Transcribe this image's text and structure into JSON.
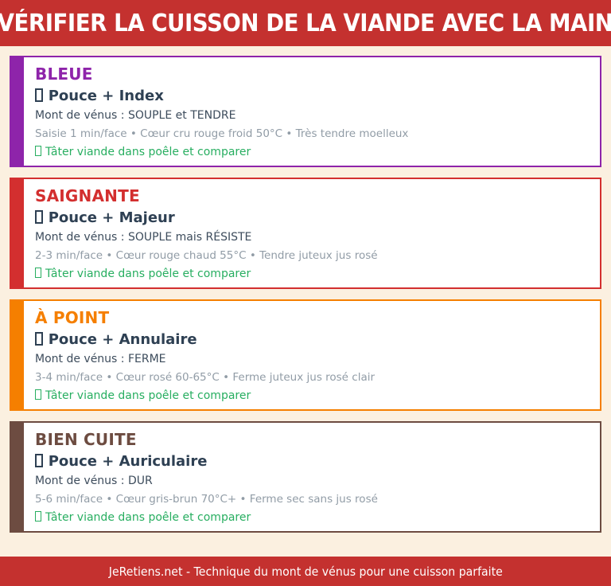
{
  "header": {
    "title": "VÉRIFIER LA CUISSON DE LA VIANDE AVEC LA MAIN"
  },
  "cards": [
    {
      "title": "BLEUE",
      "fingers": "Pouce + Index",
      "mont": "Mont de vénus : SOUPLE et TENDRE",
      "details": "Saisie 1 min/face • Cœur cru rouge froid 50°C • Très tendre moelleux",
      "action": "Tâter viande dans poêle et comparer",
      "color": "#8e24aa"
    },
    {
      "title": "SAIGNANTE",
      "fingers": "Pouce + Majeur",
      "mont": "Mont de vénus : SOUPLE mais RÉSISTE",
      "details": "2-3 min/face • Cœur rouge chaud 55°C • Tendre juteux jus rosé",
      "action": "Tâter viande dans poêle et comparer",
      "color": "#d32f2f"
    },
    {
      "title": "À POINT",
      "fingers": "Pouce + Annulaire",
      "mont": "Mont de vénus : FERME",
      "details": "3-4 min/face • Cœur rosé 60-65°C • Ferme juteux jus rosé clair",
      "action": "Tâter viande dans poêle et comparer",
      "color": "#f57f00"
    },
    {
      "title": "BIEN CUITE",
      "fingers": "Pouce + Auriculaire",
      "mont": "Mont de vénus : DUR",
      "details": "5-6 min/face • Cœur gris-brun 70°C+ • Ferme sec sans jus rosé",
      "action": "Tâter viande dans poêle et comparer",
      "color": "#6d4c41"
    }
  ],
  "footer": {
    "text": "JeRetiens.net - Technique du mont de vénus pour une cuisson parfaite"
  },
  "icons": {
    "finger_icon": "missing-glyph-box",
    "action_icon": "missing-glyph-box"
  },
  "colors": {
    "banner_background": "#c4312f",
    "page_background": "#fbf0e0",
    "card_background": "#ffffff",
    "accent_bleue": "#8e24aa",
    "accent_saignante": "#d32f2f",
    "accent_a_point": "#f57f00",
    "accent_bien_cuite": "#6d4c41",
    "action_green": "#27ae60",
    "finger_text": "#2e4053",
    "mont_text": "#3d4c5c",
    "details_text": "#919ca6",
    "banner_text": "#ffffff"
  }
}
